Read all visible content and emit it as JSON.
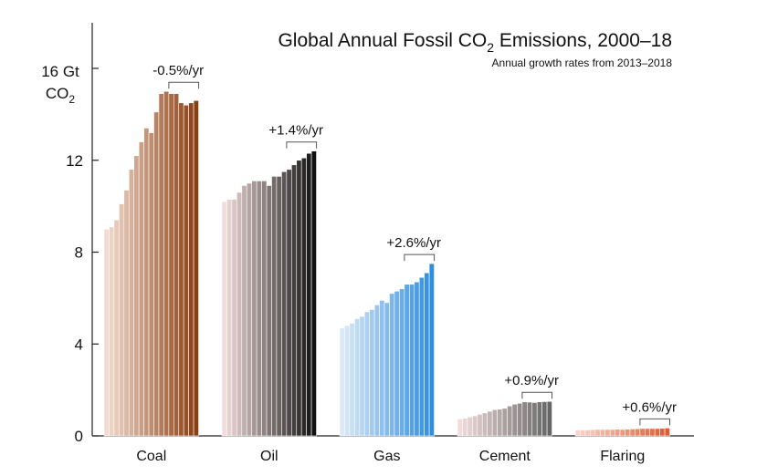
{
  "chart_data": {
    "type": "bar",
    "title": "Global Annual Fossil CO",
    "title_subscript": "2",
    "title_suffix": " Emissions, 2000–18",
    "subtitle": "Annual growth rates from 2013–2018",
    "ylabel_line1": "16 Gt",
    "ylabel_line2_main": "CO",
    "ylabel_line2_sub": "2",
    "ylim": [
      0,
      18
    ],
    "yticks": [
      0,
      4,
      8,
      12
    ],
    "years": [
      2000,
      2001,
      2002,
      2003,
      2004,
      2005,
      2006,
      2007,
      2008,
      2009,
      2010,
      2011,
      2012,
      2013,
      2014,
      2015,
      2016,
      2017,
      2018
    ],
    "groups": [
      {
        "name": "Coal",
        "growth_rate": "-0.5%/yr",
        "color_start": "#f2dccf",
        "color_end": "#8b3e10",
        "values": [
          9.0,
          9.1,
          9.4,
          10.1,
          10.7,
          11.6,
          12.2,
          12.8,
          13.4,
          13.2,
          14.1,
          14.9,
          15.0,
          14.9,
          14.9,
          14.5,
          14.4,
          14.5,
          14.6
        ]
      },
      {
        "name": "Oil",
        "growth_rate": "+1.4%/yr",
        "color_start": "#f2dcdc",
        "color_end": "#111111",
        "values": [
          10.2,
          10.3,
          10.3,
          10.6,
          10.9,
          11.0,
          11.1,
          11.1,
          11.1,
          10.9,
          11.3,
          11.3,
          11.5,
          11.6,
          11.8,
          12.0,
          12.1,
          12.3,
          12.4
        ]
      },
      {
        "name": "Gas",
        "growth_rate": "+2.6%/yr",
        "color_start": "#dce9f7",
        "color_end": "#2f8ee0",
        "values": [
          4.7,
          4.8,
          4.9,
          5.1,
          5.2,
          5.4,
          5.5,
          5.7,
          5.9,
          5.8,
          6.2,
          6.3,
          6.4,
          6.6,
          6.6,
          6.7,
          6.9,
          7.1,
          7.5
        ]
      },
      {
        "name": "Cement",
        "growth_rate": "+0.9%/yr",
        "color_start": "#f2dcdc",
        "color_end": "#666666",
        "values": [
          0.74,
          0.77,
          0.82,
          0.87,
          0.94,
          1.0,
          1.07,
          1.14,
          1.16,
          1.2,
          1.3,
          1.38,
          1.42,
          1.48,
          1.47,
          1.45,
          1.48,
          1.49,
          1.5
        ]
      },
      {
        "name": "Flaring",
        "growth_rate": "+0.6%/yr",
        "color_start": "#f9d6cc",
        "color_end": "#e05a30",
        "values": [
          0.26,
          0.26,
          0.26,
          0.27,
          0.28,
          0.28,
          0.28,
          0.28,
          0.29,
          0.28,
          0.29,
          0.3,
          0.31,
          0.32,
          0.32,
          0.32,
          0.32,
          0.33,
          0.34
        ]
      }
    ]
  }
}
